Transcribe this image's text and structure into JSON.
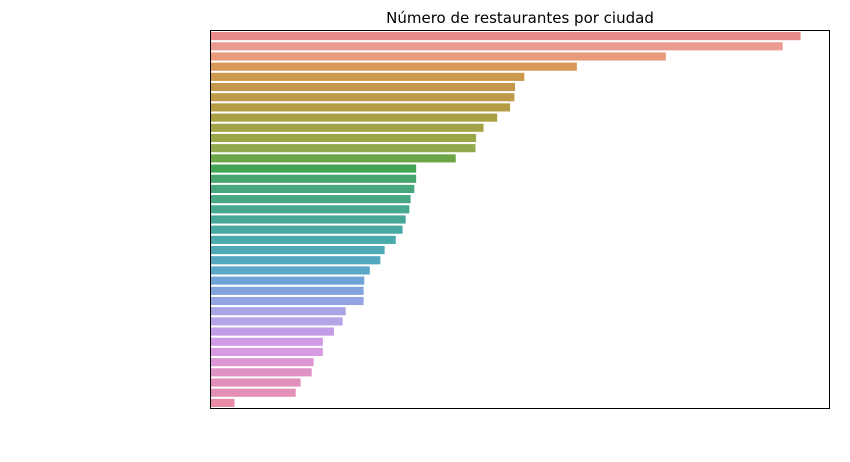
{
  "chart_data": {
    "type": "bar",
    "orientation": "horizontal",
    "title": "Número de restaurantes por ciudad",
    "xlabel": "",
    "ylabel": "",
    "xlim": [
      0,
      100
    ],
    "grid": false,
    "legend": "none",
    "values": [
      95.4,
      92.5,
      73.6,
      59.2,
      50.7,
      49.2,
      49.1,
      48.4,
      46.3,
      44.1,
      42.9,
      42.8,
      39.6,
      33.2,
      33.2,
      32.9,
      32.3,
      32.1,
      31.5,
      31.0,
      29.9,
      28.1,
      27.4,
      25.7,
      24.8,
      24.7,
      24.7,
      21.8,
      21.3,
      19.9,
      18.1,
      18.1,
      16.6,
      16.3,
      14.5,
      13.7,
      3.8
    ],
    "colors": [
      "#e8898a",
      "#e89b8e",
      "#e89a7b",
      "#d99858",
      "#cc9a4c",
      "#c4984b",
      "#bf9a4a",
      "#b49c45",
      "#a89f43",
      "#a2a246",
      "#9aa648",
      "#92aa4b",
      "#6ba545",
      "#43a453",
      "#47a66e",
      "#47a67b",
      "#47a684",
      "#47a88f",
      "#46a798",
      "#48a9a3",
      "#49aaab",
      "#4ea9b4",
      "#53a8bf",
      "#5aa7c8",
      "#6ea4d8",
      "#82a3de",
      "#94a4e2",
      "#a9a5e4",
      "#b5a4e8",
      "#c29ce6",
      "#d09be6",
      "#d79ae1",
      "#dd97d5",
      "#df92c6",
      "#e290bb",
      "#e48fb5",
      "#e88ca6"
    ]
  }
}
